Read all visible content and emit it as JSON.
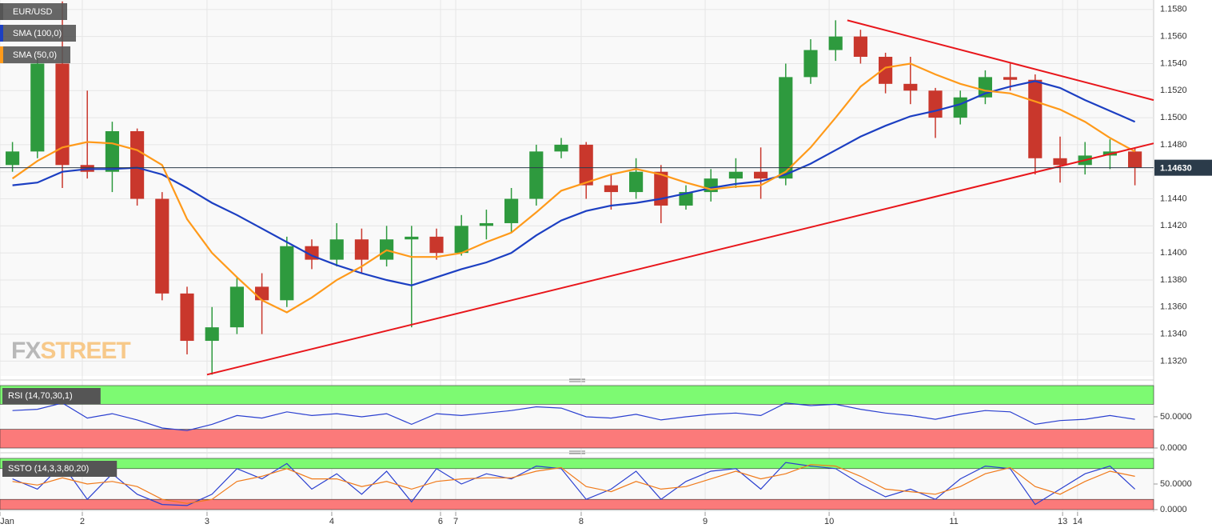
{
  "chart_data": [
    {
      "type": "candlestick",
      "x": [
        0.5,
        1.5,
        2.5,
        3.5,
        4.5,
        5.5,
        6.5,
        7.5,
        8.5,
        9.5,
        10.5,
        11.5,
        12.5,
        13.5,
        14.5,
        15.5,
        16.5,
        17.5,
        18.5,
        19.5,
        20.5,
        21.5,
        22.5,
        23.5,
        24.5,
        25.5,
        26.5,
        27.5,
        28.5,
        29.5,
        30.5,
        31.5,
        32.5,
        33.5,
        34.5,
        35.5,
        36.5,
        37.5,
        38.5,
        39.5,
        40.5,
        41.5,
        42.5,
        43.5,
        44.5,
        45.5
      ],
      "xlim": [
        0,
        46.25
      ],
      "xticks": [
        {
          "value": 0,
          "label": "Jan"
        },
        {
          "value": 3.3,
          "label": "2"
        },
        {
          "value": 8.3,
          "label": "3"
        },
        {
          "value": 13.3,
          "label": "4"
        },
        {
          "value": 17.66,
          "label": "6"
        },
        {
          "value": 18.27,
          "label": "7"
        },
        {
          "value": 23.3,
          "label": "8"
        },
        {
          "value": 28.27,
          "label": "9"
        },
        {
          "value": 33.24,
          "label": "10"
        },
        {
          "value": 38.24,
          "label": "11"
        },
        {
          "value": 42.6,
          "label": "13"
        },
        {
          "value": 43.2,
          "label": "14"
        }
      ],
      "ylim": [
        1.1309,
        1.1587
      ],
      "yticks": [
        {
          "value": 1.132,
          "label": "1.1320"
        },
        {
          "value": 1.134,
          "label": "1.1340"
        },
        {
          "value": 1.136,
          "label": "1.1360"
        },
        {
          "value": 1.138,
          "label": "1.1380"
        },
        {
          "value": 1.14,
          "label": "1.1400"
        },
        {
          "value": 1.142,
          "label": "1.1420"
        },
        {
          "value": 1.144,
          "label": "1.1440"
        },
        {
          "value": 1.146,
          "label": "1.1460"
        },
        {
          "value": 1.148,
          "label": "1.1480"
        },
        {
          "value": 1.15,
          "label": "1.1500"
        },
        {
          "value": 1.152,
          "label": "1.1520"
        },
        {
          "value": 1.154,
          "label": "1.1540"
        },
        {
          "value": 1.156,
          "label": "1.1560"
        },
        {
          "value": 1.158,
          "label": "1.1580"
        }
      ],
      "grid": true,
      "up_color": "#2e9a3e",
      "down_color": "#c9372c",
      "candles": {
        "name": "EUR/USD",
        "color": "#555555",
        "open": [
          1.1465,
          1.1475,
          1.154,
          1.1465,
          1.146,
          1.149,
          1.144,
          1.137,
          1.1335,
          1.1345,
          1.1375,
          1.1365,
          1.1405,
          1.1395,
          1.141,
          1.1395,
          1.141,
          1.1412,
          1.14,
          1.142,
          1.1422,
          1.144,
          1.1475,
          1.148,
          1.145,
          1.1445,
          1.146,
          1.1435,
          1.1445,
          1.1455,
          1.146,
          1.1455,
          1.153,
          1.155,
          1.156,
          1.1545,
          1.1525,
          1.152,
          1.15,
          1.1515,
          1.153,
          1.1528,
          1.147,
          1.1465,
          1.1472,
          1.1475
        ],
        "high": [
          1.1482,
          1.1545,
          1.1586,
          1.152,
          1.1497,
          1.1492,
          1.1445,
          1.1375,
          1.136,
          1.1382,
          1.1385,
          1.1412,
          1.141,
          1.1422,
          1.1418,
          1.142,
          1.142,
          1.1418,
          1.1428,
          1.1432,
          1.1448,
          1.148,
          1.1485,
          1.1482,
          1.1458,
          1.147,
          1.1465,
          1.145,
          1.1462,
          1.147,
          1.1478,
          1.154,
          1.1558,
          1.1572,
          1.1565,
          1.1548,
          1.1545,
          1.1522,
          1.152,
          1.1535,
          1.154,
          1.1532,
          1.1486,
          1.1482,
          1.1484,
          1.1478
        ],
        "low": [
          1.146,
          1.147,
          1.1448,
          1.1455,
          1.1445,
          1.1435,
          1.1365,
          1.1325,
          1.131,
          1.134,
          1.134,
          1.136,
          1.1388,
          1.139,
          1.1385,
          1.139,
          1.1345,
          1.1395,
          1.1398,
          1.141,
          1.1415,
          1.1435,
          1.147,
          1.144,
          1.1432,
          1.144,
          1.1422,
          1.1432,
          1.1438,
          1.1448,
          1.144,
          1.145,
          1.1525,
          1.1542,
          1.154,
          1.1518,
          1.151,
          1.1485,
          1.1495,
          1.151,
          1.152,
          1.1458,
          1.1452,
          1.1458,
          1.1462,
          1.145
        ],
        "close": [
          1.1475,
          1.154,
          1.1465,
          1.146,
          1.149,
          1.144,
          1.137,
          1.1335,
          1.1345,
          1.1375,
          1.1365,
          1.1405,
          1.1395,
          1.141,
          1.1395,
          1.141,
          1.1412,
          1.14,
          1.142,
          1.1422,
          1.144,
          1.1475,
          1.148,
          1.145,
          1.1445,
          1.146,
          1.1435,
          1.1445,
          1.1455,
          1.146,
          1.1455,
          1.153,
          1.155,
          1.156,
          1.1545,
          1.1525,
          1.152,
          1.15,
          1.1515,
          1.153,
          1.1528,
          1.147,
          1.1465,
          1.1472,
          1.1475,
          1.1463
        ]
      },
      "series": [
        {
          "name": "SMA (100,0)",
          "color": "#1c3fc2",
          "values": [
            1.145,
            1.1452,
            1.146,
            1.1462,
            1.1462,
            1.1463,
            1.1458,
            1.1448,
            1.1437,
            1.1428,
            1.1418,
            1.1408,
            1.1398,
            1.1391,
            1.1385,
            1.138,
            1.1376,
            1.1382,
            1.1388,
            1.1393,
            1.14,
            1.1413,
            1.1424,
            1.1431,
            1.1435,
            1.1437,
            1.144,
            1.1444,
            1.1448,
            1.1451,
            1.1453,
            1.1458,
            1.1466,
            1.1476,
            1.1486,
            1.1494,
            1.1501,
            1.1505,
            1.151,
            1.1518,
            1.1523,
            1.1527,
            1.1522,
            1.1513,
            1.1505,
            1.1497
          ]
        },
        {
          "name": "SMA (50,0)",
          "color": "#ff9a1a",
          "values": [
            1.1455,
            1.1468,
            1.1478,
            1.1482,
            1.1481,
            1.1476,
            1.1465,
            1.1425,
            1.14,
            1.1382,
            1.1365,
            1.1356,
            1.1367,
            1.138,
            1.139,
            1.1402,
            1.1397,
            1.1397,
            1.14,
            1.1408,
            1.1415,
            1.143,
            1.1446,
            1.1452,
            1.1458,
            1.1462,
            1.1458,
            1.1452,
            1.1447,
            1.1449,
            1.145,
            1.146,
            1.1478,
            1.15,
            1.1523,
            1.1537,
            1.154,
            1.1532,
            1.1525,
            1.152,
            1.1518,
            1.1512,
            1.1506,
            1.1497,
            1.1485,
            1.1475
          ]
        }
      ],
      "trendlines": [
        {
          "color": "#e8161b",
          "x": [
            8.3,
            46.25
          ],
          "y": [
            1.131,
            1.1481
          ]
        },
        {
          "color": "#e8161b",
          "x": [
            33.97,
            46.25
          ],
          "y": [
            1.1572,
            1.1513
          ]
        }
      ],
      "last_price": {
        "value": 1.1463,
        "label": "1.14630"
      },
      "watermark": [
        "FX",
        "STREET"
      ]
    },
    {
      "type": "line",
      "title": "RSI (14,70,30,1)",
      "ylim": [
        0,
        100
      ],
      "yticks": [
        {
          "value": 0,
          "label": "0.0000"
        },
        {
          "value": 50,
          "label": "50.0000"
        }
      ],
      "upper": 70,
      "lower": 30,
      "upper_color": "#7dfa72",
      "lower_color": "#fb7a7a",
      "series": [
        {
          "color": "#2a3fd0",
          "values": [
            60,
            62,
            72,
            48,
            55,
            45,
            32,
            28,
            38,
            52,
            48,
            58,
            52,
            55,
            50,
            55,
            38,
            55,
            52,
            56,
            60,
            66,
            64,
            50,
            48,
            54,
            45,
            50,
            54,
            56,
            52,
            72,
            68,
            70,
            62,
            56,
            52,
            46,
            54,
            60,
            58,
            38,
            44,
            46,
            52,
            46
          ]
        }
      ]
    },
    {
      "type": "line",
      "title": "SSTO (14,3,3,80,20)",
      "ylim": [
        0,
        100
      ],
      "yticks": [
        {
          "value": 0,
          "label": "0.0000"
        },
        {
          "value": 50,
          "label": "50.0000"
        }
      ],
      "upper": 80,
      "lower": 20,
      "upper_color": "#7dfa72",
      "lower_color": "#fb7a7a",
      "series": [
        {
          "color": "#2a3fd0",
          "values": [
            60,
            40,
            88,
            20,
            70,
            30,
            10,
            8,
            30,
            80,
            60,
            90,
            40,
            70,
            30,
            75,
            15,
            80,
            50,
            70,
            60,
            85,
            80,
            20,
            40,
            75,
            20,
            55,
            75,
            80,
            40,
            92,
            85,
            80,
            50,
            25,
            40,
            20,
            60,
            85,
            80,
            10,
            40,
            70,
            85,
            40
          ]
        },
        {
          "color": "#f07a1a",
          "values": [
            55,
            48,
            62,
            50,
            55,
            45,
            20,
            12,
            20,
            55,
            65,
            80,
            60,
            60,
            45,
            55,
            40,
            55,
            60,
            62,
            62,
            75,
            82,
            45,
            35,
            55,
            40,
            45,
            60,
            75,
            60,
            70,
            88,
            85,
            65,
            40,
            35,
            30,
            45,
            70,
            82,
            45,
            30,
            55,
            75,
            65
          ]
        }
      ]
    }
  ]
}
